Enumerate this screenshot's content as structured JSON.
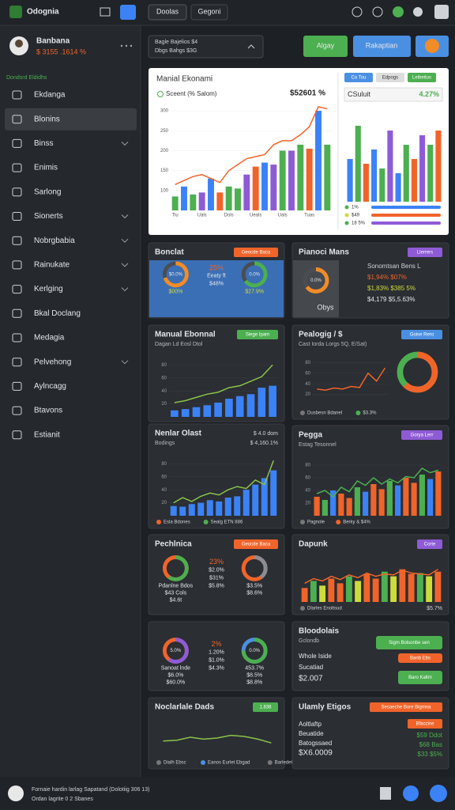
{
  "app": {
    "name": "Odognia"
  },
  "topbar": {
    "tabs": [
      "Doolas",
      "Gegoni"
    ]
  },
  "user": {
    "name": "Banbana",
    "stat": "$ 3155 .1614 %"
  },
  "sidebar": {
    "section": "Dondsrd Eldidhs",
    "items": [
      "Ekdanga",
      "Blonins",
      "Binss",
      "Enimis",
      "Sarlong",
      "Sionerts",
      "Nobrgbabia",
      "Rainukate",
      "Kerlging",
      "Bkal Doclang",
      "Medagia",
      "Pelvehong",
      "Aylncagg",
      "Btavons",
      "Estianit"
    ],
    "active": 1
  },
  "filter": {
    "title": "Bagle Bajelios $4",
    "sub": "Dbgs Bahgs $3G"
  },
  "actions": [
    "Algay",
    "Rakaptian"
  ],
  "overview": {
    "title": "Manial Ekonami",
    "legend": "Sceent (% Salom)",
    "total": "$52601 %",
    "chart": {
      "ylim": [
        50,
        320
      ],
      "yticks": [
        100,
        150,
        200,
        250,
        300
      ],
      "values": [
        85,
        110,
        90,
        95,
        130,
        95,
        110,
        105,
        140,
        160,
        170,
        165,
        200,
        200,
        215,
        205,
        300,
        215
      ],
      "colors": [
        "#4caf50",
        "#3b82f6",
        "#4caf50",
        "#8e5bd6",
        "#3b82f6",
        "#f0642a",
        "#4caf50",
        "#4caf50",
        "#8e5bd6",
        "#f0642a",
        "#3b82f6",
        "#8e5bd6",
        "#4caf50",
        "#8e5bd6",
        "#4caf50",
        "#f0642a",
        "#3b82f6",
        "#4caf50"
      ],
      "line": [
        115,
        125,
        135,
        140,
        130,
        120,
        150,
        165,
        180,
        185,
        190,
        215,
        225,
        225,
        240,
        260,
        310,
        305
      ],
      "line_color": "#f0642a",
      "categories": [
        "Tiu",
        null,
        null,
        "Uals",
        null,
        null,
        "Dols",
        null,
        null,
        "Ueals",
        null,
        null,
        "Uals",
        null,
        null,
        "Tuas",
        null,
        null
      ]
    },
    "side": {
      "tabs": [
        "Co Tou",
        "Edpogs",
        "Leibeitus"
      ],
      "title": "CSuluit",
      "value": "4.27%",
      "chart": {
        "ylim": [
          0,
          100
        ],
        "values": [
          45,
          80,
          40,
          55,
          35,
          75,
          30,
          60,
          45,
          70,
          60,
          75
        ],
        "colors": [
          "#3b82f6",
          "#4caf50",
          "#f0642a",
          "#3b82f6",
          "#4caf50",
          "#8e5bd6",
          "#3b82f6",
          "#4caf50",
          "#f0642a",
          "#8e5bd6",
          "#4caf50",
          "#f0642a"
        ]
      },
      "rows": [
        "1%",
        "$49",
        "18 5%"
      ]
    }
  },
  "panels": [
    {
      "kind": "donuts",
      "title": "Bonclat",
      "badge": "Geocde Baca",
      "badge_color": "#f0642a",
      "donuts": [
        {
          "value": 70,
          "color": "#f28c28",
          "center": "$0.0%",
          "lines": [
            "$00%"
          ]
        },
        {
          "value": 65,
          "color": "#4caf50",
          "center": "0.0%",
          "lines": [
            "$27.9%"
          ]
        }
      ],
      "mid": [
        "25%",
        "Eeaty ft",
        "$48%"
      ]
    },
    {
      "kind": "donut-stats",
      "title": "Pianoci Mans",
      "badge": "Llerrers",
      "badge_color": "#8e5bd6",
      "donut": {
        "value": 65,
        "color": "#f28c28",
        "center": "0.0%"
      },
      "caption": "Obys",
      "lines": [
        "Sonomtsan Bens L",
        "$1,94% $07%",
        "$1,83% $385 5%",
        "$4,179   $5,5.63%"
      ]
    },
    {
      "kind": "combo",
      "title": "Manual Ebonnal",
      "subtitle": "Dagan Ld Eosl Dtol",
      "badge": "Siege Ipam",
      "badge_color": "#4caf50",
      "chart": {
        "ylim": [
          0,
          100
        ],
        "yticks": [
          20,
          40,
          60,
          80
        ],
        "values": [
          10,
          12,
          15,
          18,
          22,
          28,
          32,
          35,
          45,
          48
        ],
        "color": "#3b82f6",
        "line": [
          22,
          25,
          30,
          35,
          38,
          45,
          48,
          55,
          62,
          80
        ],
        "line_color": "#8bc34a"
      }
    },
    {
      "kind": "line-donut",
      "title": "Pealogig / $",
      "subtitle": "Cast Iorda Lorgs 5Q, E/Sat)",
      "badge": "Goise Rero",
      "badge_color": "#4a90e2",
      "chart": {
        "ylim": [
          0,
          100
        ],
        "yticks": [
          20,
          40,
          60,
          80
        ],
        "line": [
          30,
          28,
          32,
          30,
          35,
          33,
          60,
          45,
          70
        ],
        "line_color": "#f0642a"
      },
      "donut": {
        "value": 62,
        "color": "#f0642a",
        "track": "#4caf50"
      },
      "legend": [
        {
          "name": "Dusbesn Bdanel",
          "color": "#777777"
        },
        {
          "name": "$3.3%",
          "color": "#4caf50"
        }
      ]
    },
    {
      "kind": "combo",
      "title": "Nenlar Olast",
      "subtitle": "Bodings",
      "notes": [
        "$ 4.0 dom",
        "$ 4,160.1%"
      ],
      "chart": {
        "ylim": [
          0,
          100
        ],
        "yticks": [
          20,
          40,
          60,
          80
        ],
        "values": [
          15,
          14,
          18,
          20,
          24,
          22,
          28,
          30,
          40,
          48,
          58,
          70
        ],
        "color": "#3b82f6",
        "line": [
          20,
          28,
          22,
          30,
          35,
          32,
          40,
          45,
          42,
          55,
          48,
          85
        ],
        "line_color": "#8bc34a"
      },
      "legend": [
        {
          "name": "Esla Bdones",
          "color": "#f0642a"
        },
        {
          "name": "Sealg ETN 886",
          "color": "#4caf50"
        }
      ]
    },
    {
      "kind": "combo",
      "title": "Pegga",
      "subtitle": "Estag Tesonnel",
      "badge": "Gorya Lerr",
      "badge_color": "#8e5bd6",
      "chart": {
        "ylim": [
          0,
          100
        ],
        "yticks": [
          20,
          40,
          60,
          80
        ],
        "values": [
          30,
          25,
          40,
          35,
          28,
          45,
          38,
          50,
          42,
          55,
          48,
          60,
          52,
          65,
          58,
          70
        ],
        "colors": [
          "#f0642a",
          "#4caf50",
          "#3b82f6",
          "#f0642a",
          "#f0642a",
          "#4caf50",
          "#3b82f6",
          "#f0642a",
          "#f0642a",
          "#4caf50",
          "#3b82f6",
          "#f0642a",
          "#f0642a",
          "#4caf50",
          "#3b82f6",
          "#f0642a"
        ],
        "line": [
          35,
          40,
          30,
          45,
          38,
          55,
          48,
          60,
          50,
          58,
          52,
          62,
          60,
          75,
          68,
          72
        ],
        "line_color": "#4caf50"
      },
      "legend": [
        {
          "name": "Pagnole",
          "color": "#777777"
        },
        {
          "name": "Berky & $4%",
          "color": "#f0642a"
        }
      ]
    },
    {
      "kind": "donuts",
      "title": "Pechlnica",
      "badge": "Geocde Baca",
      "badge_color": "#f0642a",
      "donuts": [
        {
          "value": 60,
          "color": "#4caf50",
          "track": "#f0642a",
          "center": "",
          "lines": [
            "Pdanlne Bdos",
            "$43 Cols",
            "$4.6t"
          ]
        },
        {
          "value": 40,
          "color": "#8a8d92",
          "track": "#f0642a",
          "center": "",
          "lines": [
            "$3.5%",
            "$8.6%"
          ]
        }
      ],
      "mid": [
        "23%",
        "$2.0%",
        "$31%",
        "$5.8%"
      ]
    },
    {
      "kind": "combo",
      "title": "Dapunk",
      "badge": "Corte",
      "badge_color": "#8e5bd6",
      "chart": {
        "ylim": [
          0,
          100
        ],
        "values": [
          30,
          45,
          35,
          50,
          40,
          55,
          45,
          60,
          50,
          65,
          55,
          70,
          60,
          62,
          55,
          65
        ],
        "colors": [
          "#f0642a",
          "#4caf50",
          "#cddc39",
          "#f0642a",
          "#f0642a",
          "#4caf50",
          "#cddc39",
          "#f0642a",
          "#f0642a",
          "#4caf50",
          "#cddc39",
          "#f0642a",
          "#f0642a",
          "#4caf50",
          "#cddc39",
          "#f0642a"
        ],
        "line": [
          40,
          50,
          45,
          55,
          48,
          58,
          52,
          62,
          55,
          60,
          58,
          68,
          62,
          60,
          58,
          70
        ],
        "line_color": "#f0642a"
      },
      "legend": [
        {
          "name": "Dlarles Enoltsud",
          "color": "#777777"
        }
      ],
      "notes": [
        "$5.7%"
      ]
    },
    {
      "kind": "donuts",
      "donuts": [
        {
          "value": 60,
          "color": "#8e5bd6",
          "track": "#f0642a",
          "center": "5.0%",
          "lines": [
            "Sanoat lnde",
            "$6.0%",
            "$60.0%"
          ]
        },
        {
          "value": 75,
          "color": "#4caf50",
          "track": "#4a90e2",
          "center": "0.0%",
          "lines": [
            "453.7%",
            "$8.5%",
            "$8.8%"
          ]
        }
      ],
      "mid": [
        "2%",
        "1.20%",
        "$1.0%",
        "$4.3%"
      ]
    },
    {
      "kind": "buttons",
      "title": "Bloodolais",
      "subtitle": "Gclondb",
      "lines": [
        "Whole Iside",
        "Sucatiad",
        "$2.007"
      ],
      "buttons": [
        {
          "text": "Sigm Bolsonbe sen",
          "color": "#4caf50"
        },
        {
          "text": "Banb Ebs",
          "color": "#f0642a"
        },
        {
          "text": "Baro Kaltm",
          "color": "#4caf50"
        }
      ]
    },
    {
      "kind": "line",
      "title": "Noclarlale Dads",
      "badge": "1.836",
      "badge_color": "#4caf50",
      "chart": {
        "ylim": [
          0,
          100
        ],
        "line": [
          40,
          42,
          50,
          45,
          48,
          55,
          52,
          45,
          35
        ],
        "line_color": "#8bc34a"
      },
      "legend": [
        {
          "name": "Dialh Ebsc",
          "color": "#777777"
        },
        {
          "name": "Eanos Eurlet Ebgad",
          "color": "#4a90e2"
        },
        {
          "name": "Barledets",
          "color": "#777777"
        }
      ]
    },
    {
      "kind": "stats",
      "title": "Ulamly Etigos",
      "badge": "Sesaeche Bore Bigmna",
      "badge_color": "#f0642a",
      "badge2": "Bfaccine",
      "lines": [
        "Aoltlaftp",
        "Beuatide",
        "Batogssaed",
        "$X6.0009"
      ],
      "values": [
        "$59 Ddot",
        "$68 Bas",
        "$33 $5%"
      ]
    }
  ],
  "footer": {
    "line1": "Fornaie hardin larlag Sapatand (Dolotiig 306 13)",
    "line2": "Ordan lagrite 0 2 Sbanes"
  }
}
